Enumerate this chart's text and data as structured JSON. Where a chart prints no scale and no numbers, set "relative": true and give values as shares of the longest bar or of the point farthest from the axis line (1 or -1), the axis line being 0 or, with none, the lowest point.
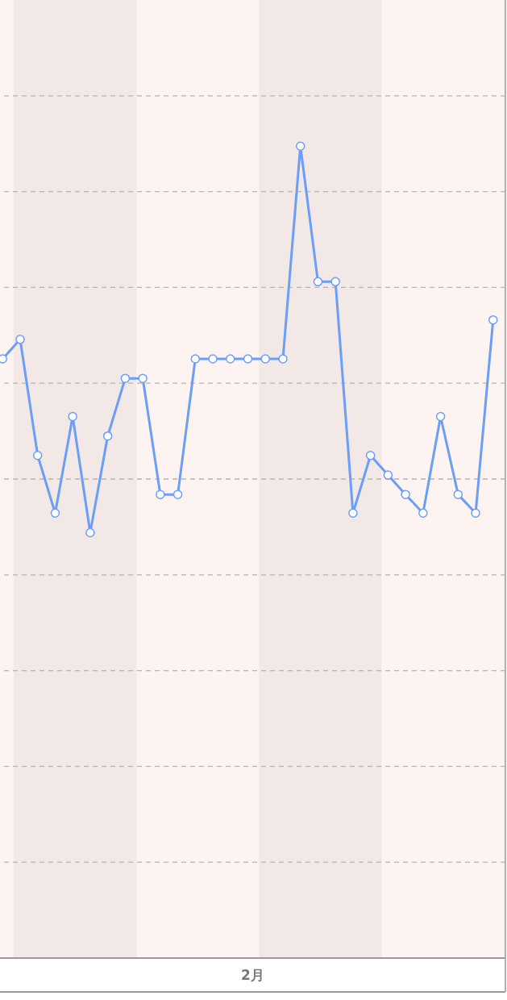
{
  "chart_data": {
    "type": "line",
    "relative": true,
    "xlabel": "2月",
    "categories": [
      null,
      null,
      null,
      null,
      null,
      null,
      null,
      null,
      null,
      null,
      null,
      null,
      null,
      null,
      null,
      null,
      null,
      null,
      null,
      null,
      null,
      null,
      null,
      null,
      null,
      null,
      null,
      null,
      null
    ],
    "series": [
      {
        "color": "#6a9ef7",
        "values": [
          0.738,
          0.762,
          0.619,
          0.548,
          0.667,
          0.524,
          0.643,
          0.714,
          0.714,
          0.571,
          0.571,
          0.738,
          0.738,
          0.738,
          0.738,
          0.738,
          0.738,
          1.0,
          0.833,
          0.833,
          0.548,
          0.619,
          0.595,
          0.571,
          0.548,
          0.667,
          0.571,
          0.548,
          0.786
        ]
      }
    ],
    "marker": "circle",
    "line_style": "solid",
    "grid": "y"
  }
}
